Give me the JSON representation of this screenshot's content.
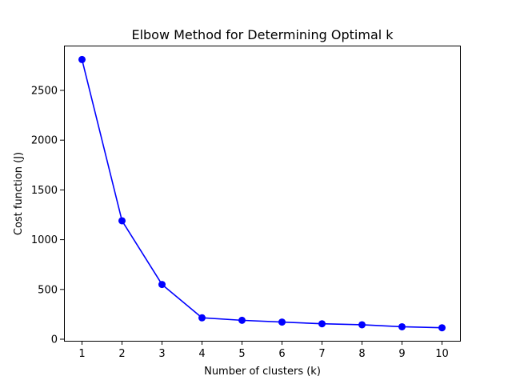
{
  "chart_data": {
    "type": "line",
    "title": "Elbow Method for Determining Optimal k",
    "xlabel": "Number of clusters (k)",
    "ylabel": "Cost function (J)",
    "x": [
      1,
      2,
      3,
      4,
      5,
      6,
      7,
      8,
      9,
      10
    ],
    "series": [
      {
        "values": [
          2810,
          1190,
          550,
          215,
          190,
          172,
          155,
          145,
          125,
          115
        ],
        "color": "#0000ff",
        "marker": "circle"
      }
    ],
    "xlim": [
      0.55,
      10.45
    ],
    "ylim": [
      -16,
      2950
    ],
    "xticks": [
      1,
      2,
      3,
      4,
      5,
      6,
      7,
      8,
      9,
      10
    ],
    "yticks": [
      0,
      500,
      1000,
      1500,
      2000,
      2500
    ],
    "grid": false,
    "legend": "none"
  }
}
